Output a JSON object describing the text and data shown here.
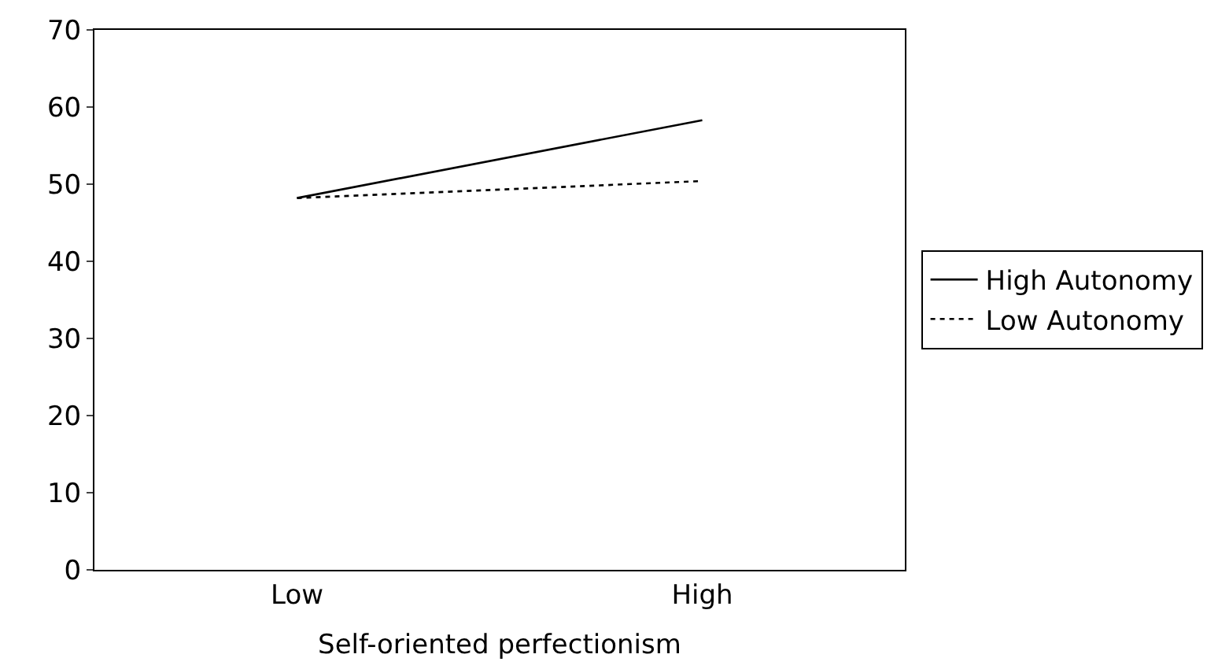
{
  "chart_data": {
    "type": "line",
    "xlabel": "Self-oriented perfectionism",
    "categories": [
      "Low",
      "High"
    ],
    "series": [
      {
        "name": "High Autonomy",
        "color": "#000000",
        "line_style": "solid",
        "values": [
          48.2,
          58.3
        ]
      },
      {
        "name": "Low Autonomy",
        "color": "#000000",
        "line_style": "dotted",
        "values": [
          48.2,
          50.4
        ]
      }
    ],
    "ylim": [
      0,
      70
    ],
    "yticks": [
      0,
      10,
      20,
      30,
      40,
      50,
      60,
      70
    ],
    "grid": false,
    "legend": "right",
    "marker": "none"
  }
}
